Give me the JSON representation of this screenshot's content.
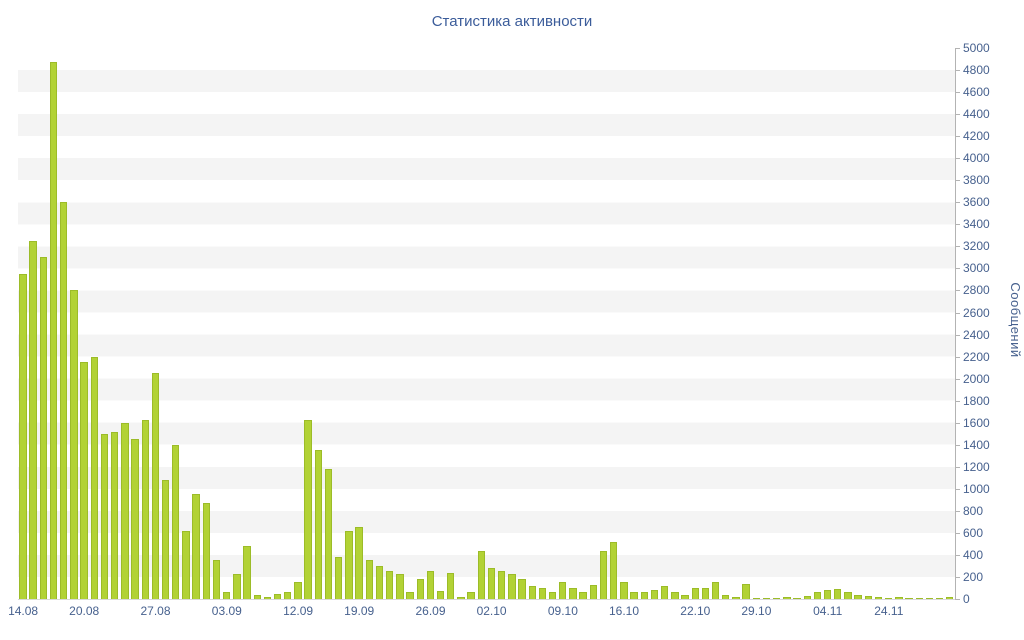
{
  "title": "Статистика активности",
  "colors": {
    "bar_fill": "#b2d235",
    "bar_stroke": "#9cbc28",
    "title_text": "#3b5c9a",
    "axis_text": "#47618e",
    "stripe": "#f4f4f4",
    "axis_line": "#b3b3b3"
  },
  "chart_data": {
    "type": "bar",
    "title": "Статистика активности",
    "xlabel": "",
    "ylabel": "Сообщений",
    "ylim": [
      0,
      5000
    ],
    "y_tick_step": 200,
    "grid": "horizontal-stripes",
    "legend": "none",
    "x_tick_labels": [
      {
        "index": 0,
        "label": "14.08"
      },
      {
        "index": 6,
        "label": "20.08"
      },
      {
        "index": 13,
        "label": "27.08"
      },
      {
        "index": 20,
        "label": "03.09"
      },
      {
        "index": 27,
        "label": "12.09"
      },
      {
        "index": 33,
        "label": "19.09"
      },
      {
        "index": 40,
        "label": "26.09"
      },
      {
        "index": 46,
        "label": "02.10"
      },
      {
        "index": 53,
        "label": "09.10"
      },
      {
        "index": 59,
        "label": "16.10"
      },
      {
        "index": 66,
        "label": "22.10"
      },
      {
        "index": 72,
        "label": "29.10"
      },
      {
        "index": 79,
        "label": "04.11"
      },
      {
        "index": 85,
        "label": "24.11"
      }
    ],
    "values": [
      2950,
      3250,
      3100,
      4870,
      3600,
      2800,
      2150,
      2200,
      1500,
      1520,
      1600,
      1450,
      1620,
      2050,
      1080,
      1400,
      620,
      950,
      870,
      350,
      60,
      230,
      480,
      40,
      20,
      50,
      60,
      150,
      1620,
      1350,
      1180,
      380,
      620,
      650,
      350,
      300,
      250,
      230,
      60,
      180,
      250,
      70,
      240,
      20,
      60,
      440,
      280,
      250,
      230,
      180,
      120,
      100,
      60,
      150,
      100,
      60,
      130,
      440,
      520,
      150,
      60,
      60,
      80,
      120,
      60,
      40,
      100,
      100,
      150,
      40,
      20,
      140,
      10,
      5,
      10,
      20,
      10,
      30,
      60,
      80,
      90,
      60,
      40,
      30,
      20,
      10,
      15,
      10,
      5,
      10,
      5,
      15
    ]
  }
}
